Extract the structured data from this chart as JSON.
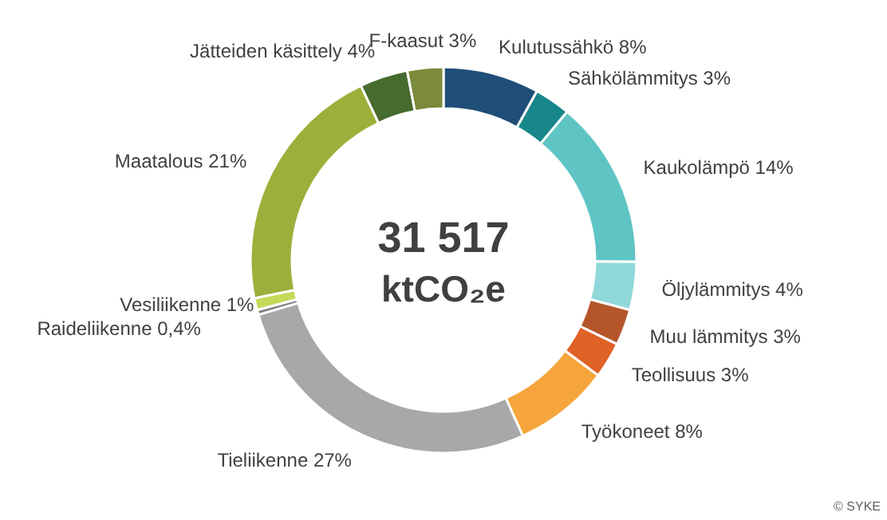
{
  "chart_data": {
    "type": "donut",
    "categories": [
      "Kulutussähkö",
      "Sähkölämmitys",
      "Kaukolämpö",
      "Öljylämmitys",
      "Muu lämmitys",
      "Teollisuus",
      "Työkoneet",
      "Tieliikenne",
      "Raideliikenne",
      "Vesiliikenne",
      "Maatalous",
      "Jätteiden käsittely",
      "F-kaasut"
    ],
    "values": [
      8,
      3,
      14,
      4,
      3,
      3,
      8,
      27,
      0.4,
      1,
      21,
      4,
      3
    ],
    "value_labels": [
      "8%",
      "3%",
      "14%",
      "4%",
      "3%",
      "3%",
      "8%",
      "27%",
      "0,4%",
      "1%",
      "21%",
      "4%",
      "3%"
    ],
    "colors": [
      "#1f4e79",
      "#17878a",
      "#5ec4c4",
      "#90d8d9",
      "#b4562a",
      "#df6226",
      "#f6a53c",
      "#a8a8aa",
      "#7f7f7f",
      "#c7d95a",
      "#9bb03a",
      "#476b2f",
      "#7b8b3b"
    ],
    "annotations": [
      "31 517",
      "ktCO₂e",
      "© SYKE"
    ]
  }
}
